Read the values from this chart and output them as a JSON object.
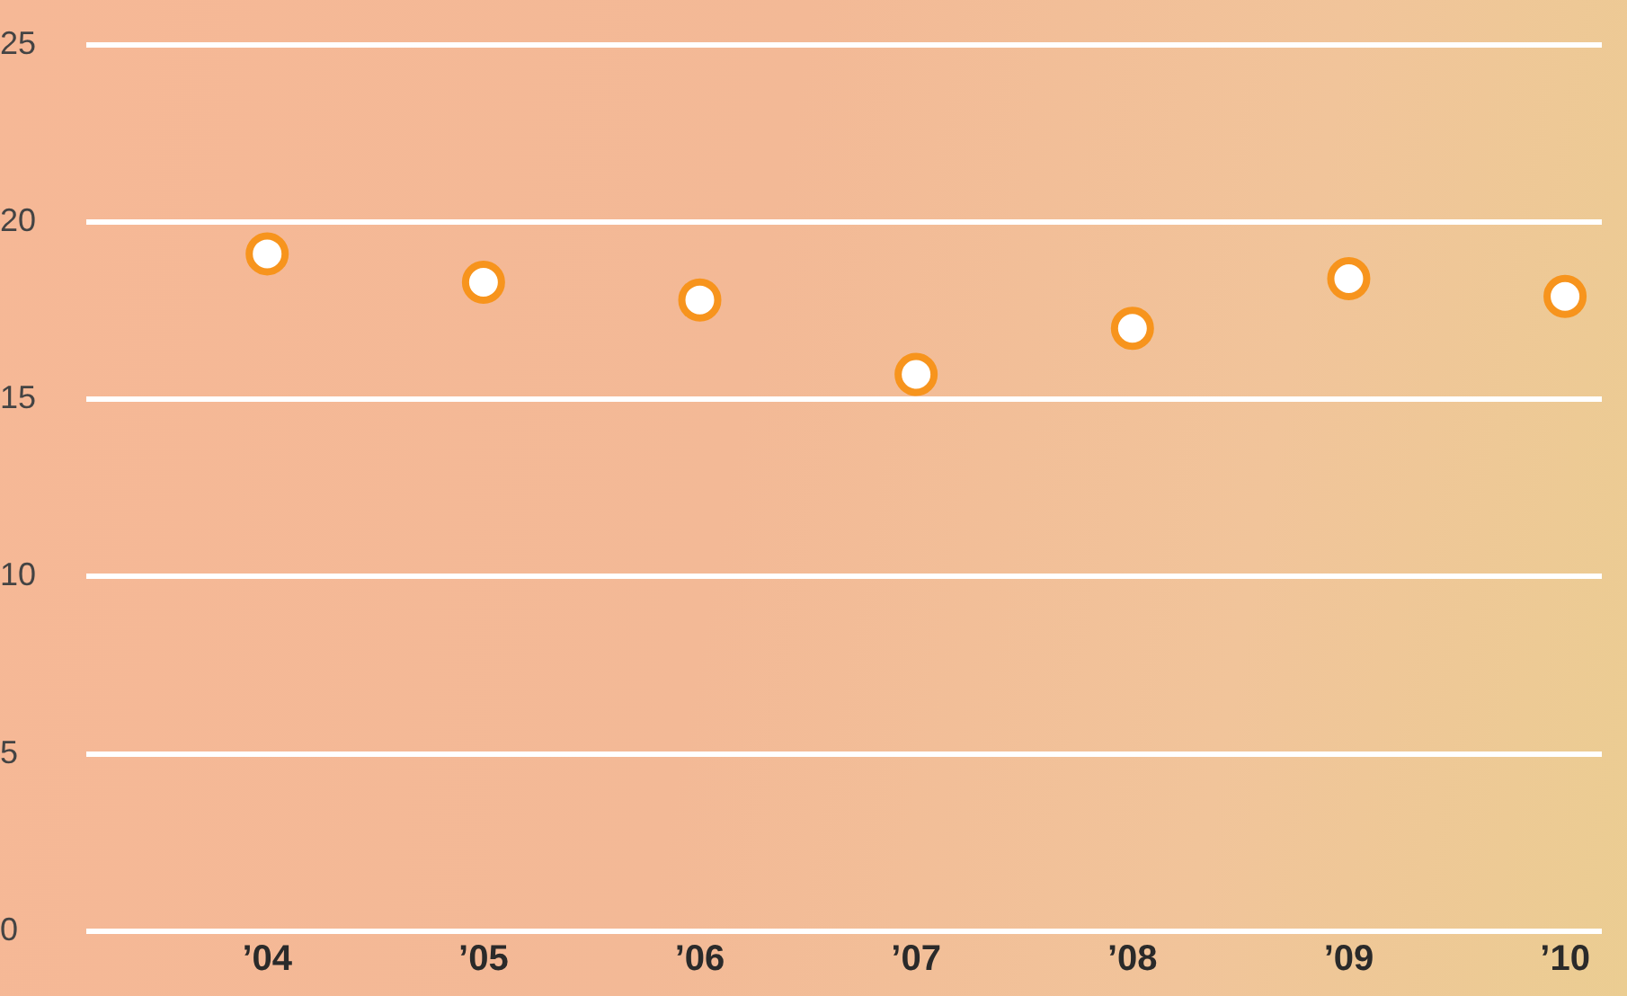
{
  "chart_data": {
    "type": "scatter",
    "categories": [
      "’04",
      "’05",
      "’06",
      "’07",
      "’08",
      "’09",
      "’10"
    ],
    "series": [
      {
        "color": "#f7941d",
        "values": [
          19.1,
          18.3,
          17.8,
          15.7,
          17.0,
          18.4,
          17.9
        ]
      }
    ],
    "ylim": [
      0,
      25
    ],
    "yticks": [
      0,
      5,
      10,
      15,
      20,
      25
    ],
    "grid": "y",
    "marker": "circle"
  }
}
